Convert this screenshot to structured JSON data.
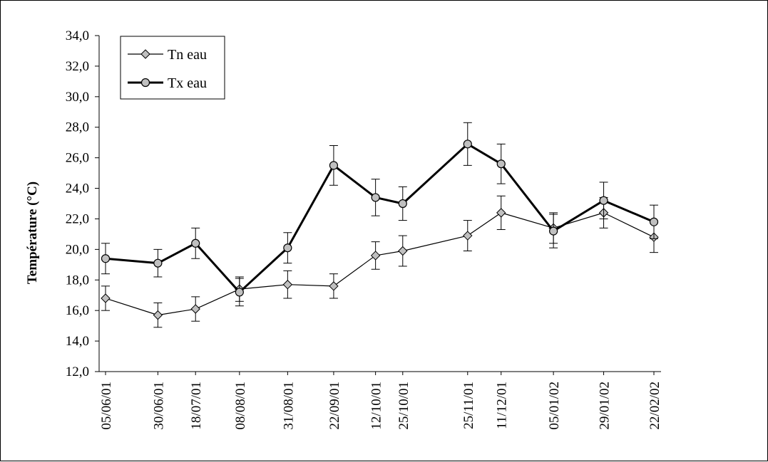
{
  "chart_data": {
    "type": "line",
    "title": "",
    "xlabel": "",
    "ylabel": "Température (°C)",
    "ylim": [
      12,
      34
    ],
    "ytick_step": 2,
    "yticks": [
      "12,0",
      "14,0",
      "16,0",
      "18,0",
      "20,0",
      "22,0",
      "24,0",
      "26,0",
      "28,0",
      "30,0",
      "32,0",
      "34,0"
    ],
    "x_axis_type": "date",
    "x": [
      "2001-06-05",
      "2001-06-30",
      "2001-07-18",
      "2001-08-08",
      "2001-08-31",
      "2001-09-22",
      "2001-10-12",
      "2001-10-25",
      "2001-11-25",
      "2001-12-11",
      "2002-01-05",
      "2002-01-29",
      "2002-02-22"
    ],
    "x_tick_labels": [
      "05/06/01",
      "30/06/01",
      "18/07/01",
      "08/08/01",
      "31/08/01",
      "22/09/01",
      "12/10/01",
      "25/10/01",
      "25/11/01",
      "11/12/01",
      "05/01/02",
      "29/01/02",
      "22/02/02"
    ],
    "legend_position": "top-left",
    "grid": false,
    "series": [
      {
        "name": "Tn eau",
        "marker": "diamond",
        "color": "#000000",
        "marker_fill": "#c0c0c0",
        "values": [
          16.8,
          15.7,
          16.1,
          17.4,
          17.7,
          17.6,
          19.6,
          19.9,
          20.9,
          22.4,
          21.4,
          22.4,
          20.8
        ],
        "error": [
          0.8,
          0.8,
          0.8,
          0.8,
          0.9,
          0.8,
          0.9,
          1.0,
          1.0,
          1.1,
          1.0,
          1.0,
          1.0
        ]
      },
      {
        "name": "Tx eau",
        "marker": "circle",
        "color": "#000000",
        "marker_fill": "#c0c0c0",
        "values": [
          19.4,
          19.1,
          20.4,
          17.2,
          20.1,
          25.5,
          23.4,
          23.0,
          26.9,
          25.6,
          21.2,
          23.2,
          21.8
        ],
        "error": [
          1.0,
          0.9,
          1.0,
          0.9,
          1.0,
          1.3,
          1.2,
          1.1,
          1.4,
          1.3,
          1.1,
          1.2,
          1.1
        ]
      }
    ]
  }
}
